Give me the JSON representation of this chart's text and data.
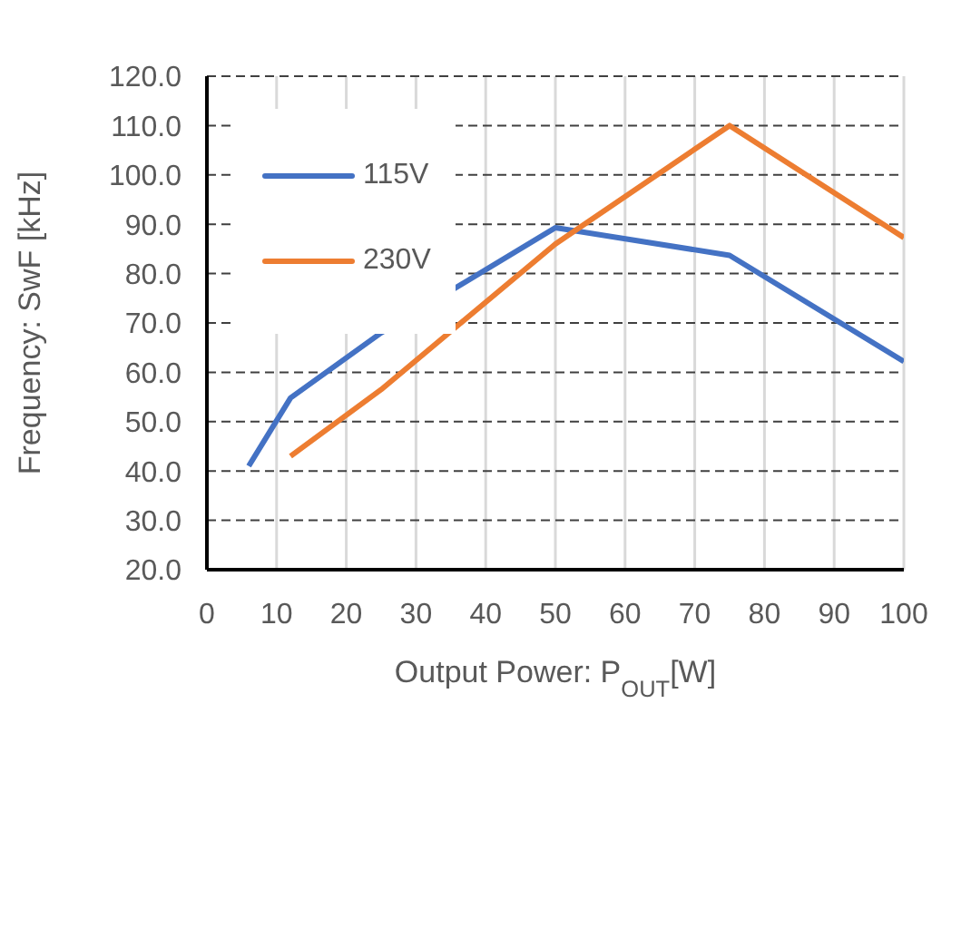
{
  "chart_data": {
    "type": "line",
    "xlabel": "Output Power:  P$_{OUT}$[W]",
    "ylabel": "Frequency: SwF [kHz]",
    "series": [
      {
        "name": "115V",
        "color": "#4472c4",
        "x": [
          6,
          12,
          25,
          50,
          75,
          100
        ],
        "values": [
          41,
          54.8,
          68,
          89.3,
          83.7,
          62.2
        ]
      },
      {
        "name": "230V",
        "color": "#ed7d31",
        "x": [
          12,
          25,
          50,
          75,
          100
        ],
        "values": [
          43,
          56.5,
          86,
          110,
          87.3
        ]
      }
    ],
    "xlim": [
      0,
      100
    ],
    "xticks": [
      0,
      10,
      20,
      30,
      40,
      50,
      60,
      70,
      80,
      90,
      100
    ],
    "ylim": [
      20,
      120
    ],
    "yticks": [
      {
        "value": 20,
        "label": "20.0"
      },
      {
        "value": 30,
        "label": "30.0"
      },
      {
        "value": 40,
        "label": "40.0"
      },
      {
        "value": 50,
        "label": "50.0"
      },
      {
        "value": 60,
        "label": "60.0"
      },
      {
        "value": 70,
        "label": "70.0"
      },
      {
        "value": 80,
        "label": "80.0"
      },
      {
        "value": 90,
        "label": "90.0"
      },
      {
        "value": 100,
        "label": "100.0"
      },
      {
        "value": 110,
        "label": "110.0"
      },
      {
        "value": 120,
        "label": "120.0"
      }
    ],
    "grid": true,
    "legend": "top left",
    "marker": "none",
    "line_style": "solid"
  }
}
